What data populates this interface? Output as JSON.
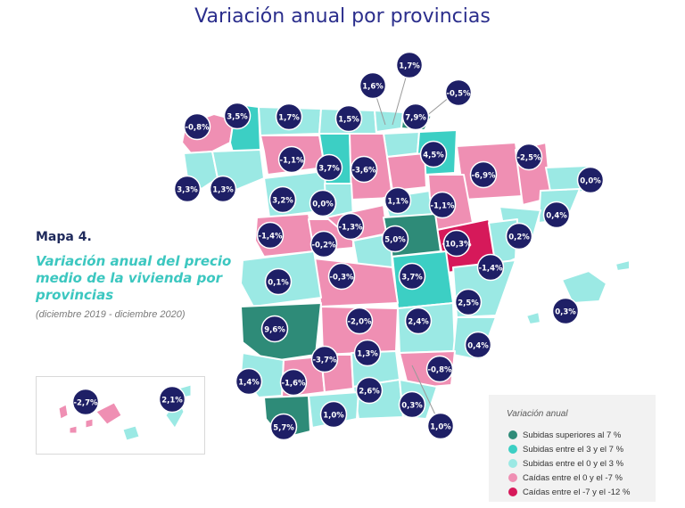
{
  "title": "Variación anual por provincias",
  "map_label": "Mapa 4.",
  "subtitle_lines": [
    "Variación anual del precio",
    "medio de la vivienda por",
    "provincias"
  ],
  "period": "(diciembre 2019 - diciembre 2020)",
  "colors": {
    "up_gt7": "#2e8b78",
    "up_3_7": "#3ccfc4",
    "up_0_3": "#9be9e4",
    "down_0_7": "#ef8fb3",
    "down_7_12": "#d6195a",
    "bubble": "#1e1f66"
  },
  "legend": {
    "title": "Variación anual",
    "items": [
      {
        "label": "Subidas superiores al 7 %",
        "color": "#2e8b78"
      },
      {
        "label": "Subidas entre el 3 y el 7 %",
        "color": "#3ccfc4"
      },
      {
        "label": "Subidas entre el 0 y el 3 %",
        "color": "#9be9e4"
      },
      {
        "label": "Caídas entre el 0 y el -7 %",
        "color": "#ef8fb3"
      },
      {
        "label": "Caídas entre el -7 y el -12 %",
        "color": "#d6195a"
      }
    ]
  },
  "province_values": [
    "-0,8%",
    "3,5%",
    "1,7%",
    "1,5%",
    "1,6%",
    "1,7%",
    "-0,5%",
    "7,9%",
    "3,3%",
    "1,3%",
    "-1,1%",
    "3,7%",
    "-3,6%",
    "4,5%",
    "-6,9%",
    "-2,5%",
    "0,0%",
    "3,2%",
    "0,0%",
    "1,1%",
    "-1,1%",
    "0,4%",
    "-1,4%",
    "-1,3%",
    "5,0%",
    "-10,3%",
    "0,2%",
    "-0,2%",
    "0,1%",
    "-0,3%",
    "3,7%",
    "-1,4%",
    "2,5%",
    "0,3%",
    "9,6%",
    "-2,0%",
    "2,4%",
    "0,4%",
    "-3,7%",
    "1,3%",
    "-0,8%",
    "1,4%",
    "-1,6%",
    "2,6%",
    "0,3%",
    "5,7%",
    "1,0%",
    "1,0%",
    "-2,7%",
    "2,1%"
  ]
}
